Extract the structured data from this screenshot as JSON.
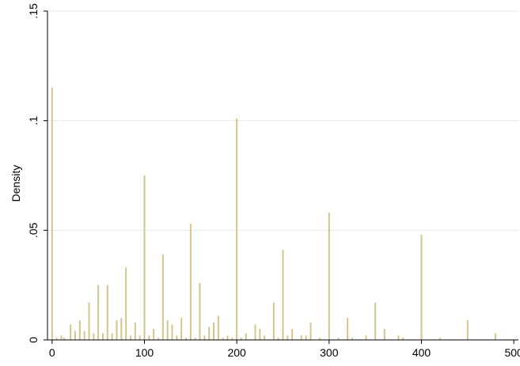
{
  "chart_data": {
    "type": "bar",
    "title": "",
    "xlabel": "",
    "ylabel": "Density",
    "xlim": [
      -5,
      505
    ],
    "ylim": [
      0,
      0.15
    ],
    "x_ticks": [
      {
        "value": 0,
        "label": "0"
      },
      {
        "value": 100,
        "label": "100"
      },
      {
        "value": 200,
        "label": "200"
      },
      {
        "value": 300,
        "label": "300"
      },
      {
        "value": 400,
        "label": "400"
      },
      {
        "value": 500,
        "label": "500"
      }
    ],
    "y_ticks": [
      {
        "value": 0,
        "label": "0"
      },
      {
        "value": 0.05,
        "label": ".05"
      },
      {
        "value": 0.1,
        "label": ".1"
      },
      {
        "value": 0.15,
        "label": ".15"
      }
    ],
    "grid": true,
    "bar_color": "#d2c78a",
    "grid_color": "#eaeaea",
    "series": [
      {
        "x": [
          0,
          5,
          10,
          13,
          20,
          25,
          30,
          35,
          40,
          45,
          50,
          55,
          60,
          65,
          70,
          75,
          80,
          85,
          90,
          95,
          100,
          105,
          110,
          115,
          120,
          125,
          130,
          135,
          140,
          145,
          150,
          155,
          160,
          165,
          170,
          175,
          180,
          185,
          190,
          195,
          200,
          205,
          210,
          220,
          225,
          230,
          240,
          245,
          250,
          255,
          260,
          270,
          275,
          280,
          290,
          300,
          310,
          320,
          325,
          340,
          350,
          360,
          375,
          380,
          400,
          420,
          450,
          480
        ],
        "values": [
          0.115,
          0.001,
          0.002,
          0.001,
          0.007,
          0.004,
          0.009,
          0.004,
          0.017,
          0.003,
          0.025,
          0.003,
          0.025,
          0.003,
          0.009,
          0.01,
          0.033,
          0.002,
          0.008,
          0.002,
          0.075,
          0.002,
          0.005,
          0.001,
          0.039,
          0.009,
          0.007,
          0.002,
          0.01,
          0.001,
          0.053,
          0.001,
          0.026,
          0.002,
          0.006,
          0.008,
          0.011,
          0.001,
          0.002,
          0.001,
          0.101,
          0.001,
          0.003,
          0.007,
          0.005,
          0.002,
          0.017,
          0.001,
          0.041,
          0.002,
          0.005,
          0.002,
          0.002,
          0.008,
          0.001,
          0.058,
          0.001,
          0.01,
          0.001,
          0.002,
          0.017,
          0.005,
          0.002,
          0.001,
          0.048,
          0.001,
          0.009,
          0.003
        ]
      }
    ]
  }
}
